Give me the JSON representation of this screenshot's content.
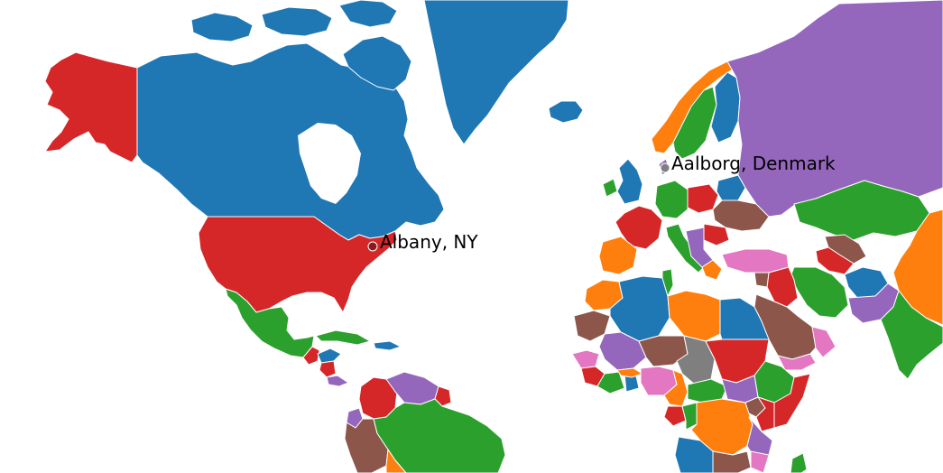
{
  "palette": {
    "blue": "#1f77b4",
    "red": "#d62728",
    "green": "#2ca02c",
    "purple": "#9467bd",
    "orange": "#ff7f0e",
    "brown": "#8c564b",
    "pink": "#e377c2",
    "gray": "#7f7f7f",
    "border": "#ffffff",
    "marker": "#8b1a1a",
    "label": "#000000"
  },
  "markers": [
    {
      "name": "albany-marker",
      "label": "Albany, NY",
      "lat": 42.65,
      "lon": -73.75
    },
    {
      "name": "aalborg-marker",
      "label": "Aalborg, Denmark",
      "lat": 57.05,
      "lon": 9.92
    }
  ]
}
